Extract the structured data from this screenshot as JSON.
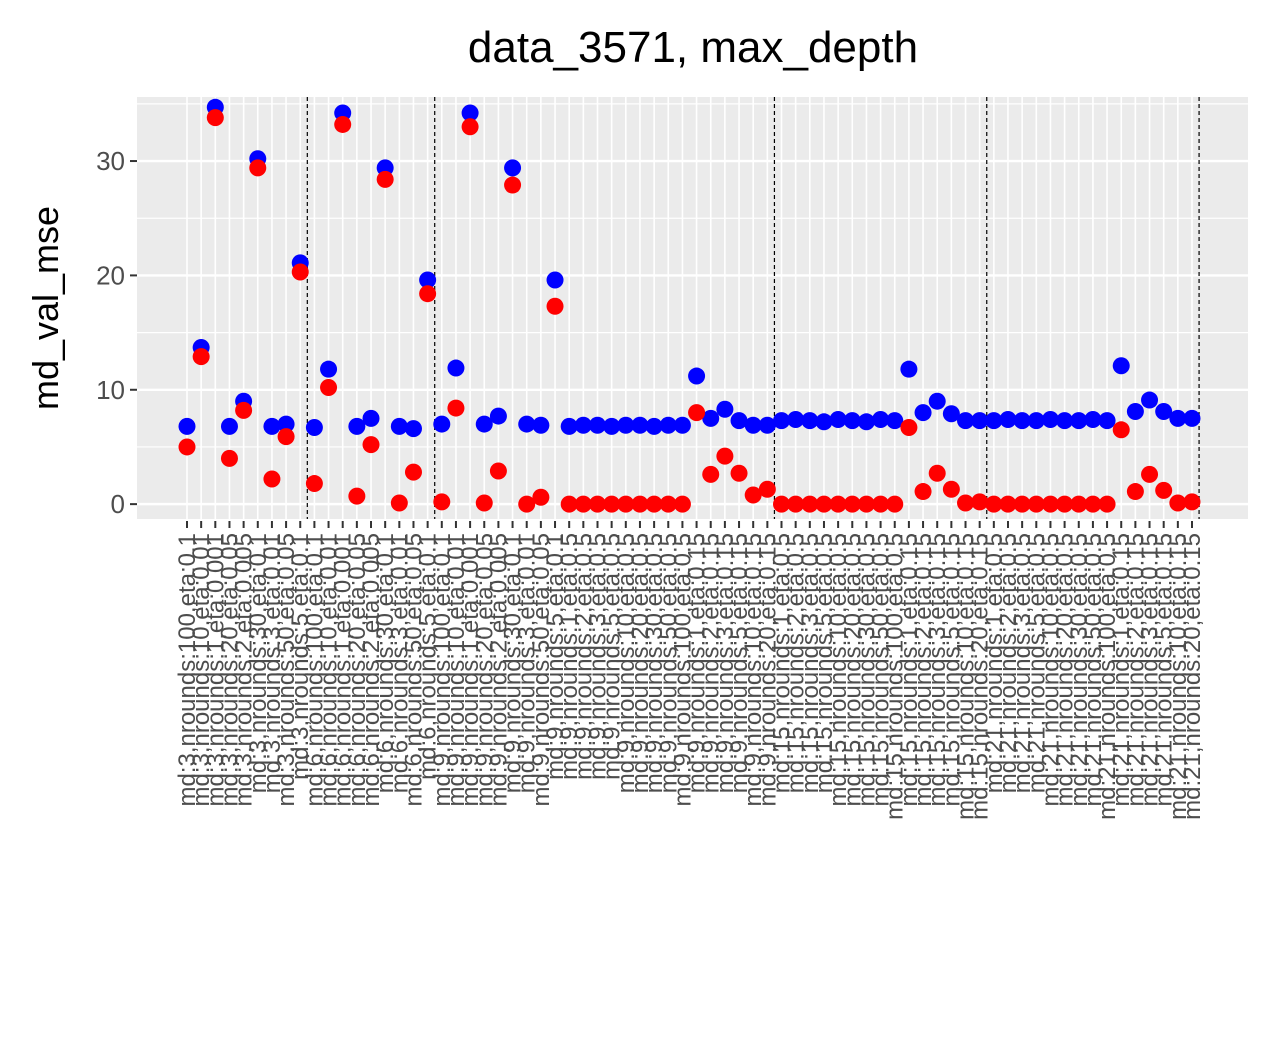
{
  "chart_data": {
    "type": "scatter",
    "title": "data_3571, max_depth",
    "xlabel": "",
    "ylabel": "md_val_mse",
    "ylim": [
      -1.3,
      35.6
    ],
    "yticks": [
      0,
      10,
      20,
      30
    ],
    "grid": true,
    "legend": "none",
    "colors": {
      "panel": "#ebebeb",
      "grid": "#ffffff",
      "series_a": "#0000ff",
      "series_b": "#ff0000",
      "vline": "#000000"
    },
    "categories": [
      "md:3,nrounds:100,eta:0.1",
      "md:3,nrounds:10,eta:0.01",
      "md:3,nrounds:1,eta:0.001",
      "md:3,nrounds:20,eta:0.05",
      "md:3,nrounds:2,eta:0.005",
      "md:3,nrounds:30,eta:0.1",
      "md:3,nrounds:3,eta:0.01",
      "md:3,nrounds:50,eta:0.05",
      "md:3,nrounds:5,eta:0.1",
      "md:6,nrounds:100,eta:0.1",
      "md:6,nrounds:10,eta:0.01",
      "md:6,nrounds:1,eta:0.001",
      "md:6,nrounds:20,eta:0.05",
      "md:6,nrounds:2,eta:0.005",
      "md:6,nrounds:30,eta:0.1",
      "md:6,nrounds:3,eta:0.01",
      "md:6,nrounds:50,eta:0.05",
      "md:6,nrounds:5,eta:0.1",
      "md:9,nrounds:100,eta:0.1",
      "md:9,nrounds:10,eta:0.01",
      "md:9,nrounds:1,eta:0.001",
      "md:9,nrounds:20,eta:0.05",
      "md:9,nrounds:2,eta:0.005",
      "md:9,nrounds:30,eta:0.1",
      "md:9,nrounds:3,eta:0.01",
      "md:9,nrounds:50,eta:0.05",
      "md:9,nrounds:5,eta:0.1",
      "md:9,nrounds:1,eta:0.5",
      "md:9,nrounds:2,eta:0.5",
      "md:9,nrounds:3,eta:0.5",
      "md:9,nrounds:5,eta:0.5",
      "md:9,nrounds:10,eta:0.5",
      "md:9,nrounds:20,eta:0.5",
      "md:9,nrounds:30,eta:0.5",
      "md:9,nrounds:50,eta:0.5",
      "md:9,nrounds:100,eta:0.5",
      "md:9,nrounds:1,eta:0.15",
      "md:9,nrounds:2,eta:0.15",
      "md:9,nrounds:3,eta:0.15",
      "md:9,nrounds:5,eta:0.15",
      "md:9,nrounds:10,eta:0.15",
      "md:9,nrounds:20,eta:0.15",
      "md:15,nrounds:1,eta:0.5",
      "md:15,nrounds:2,eta:0.5",
      "md:15,nrounds:3,eta:0.5",
      "md:15,nrounds:5,eta:0.5",
      "md:15,nrounds:10,eta:0.5",
      "md:15,nrounds:20,eta:0.5",
      "md:15,nrounds:30,eta:0.5",
      "md:15,nrounds:50,eta:0.5",
      "md:15,nrounds:100,eta:0.5",
      "md:15,nrounds:1,eta:0.15",
      "md:15,nrounds:2,eta:0.15",
      "md:15,nrounds:3,eta:0.15",
      "md:15,nrounds:5,eta:0.15",
      "md:15,nrounds:10,eta:0.15",
      "md:15,nrounds:20,eta:0.15",
      "md:21,nrounds:1,eta:0.5",
      "md:21,nrounds:2,eta:0.5",
      "md:21,nrounds:3,eta:0.5",
      "md:21,nrounds:5,eta:0.5",
      "md:21,nrounds:10,eta:0.5",
      "md:21,nrounds:20,eta:0.5",
      "md:21,nrounds:30,eta:0.5",
      "md:21,nrounds:50,eta:0.5",
      "md:21,nrounds:100,eta:0.5",
      "md:21,nrounds:1,eta:0.15",
      "md:21,nrounds:2,eta:0.15",
      "md:21,nrounds:3,eta:0.15",
      "md:21,nrounds:5,eta:0.15",
      "md:21,nrounds:10,eta:0.15",
      "md:21,nrounds:20,eta:0.15"
    ],
    "group_boundaries_after_index": [
      8,
      17,
      41,
      56,
      71
    ],
    "series": [
      {
        "color": "#0000ff",
        "values": [
          6.8,
          13.7,
          34.7,
          6.8,
          9.0,
          30.2,
          6.8,
          7.0,
          21.1,
          6.7,
          11.8,
          34.2,
          6.8,
          7.5,
          29.4,
          6.8,
          6.6,
          19.6,
          7.0,
          11.9,
          34.2,
          7.0,
          7.7,
          29.4,
          7.0,
          6.9,
          19.6,
          6.8,
          6.9,
          6.9,
          6.8,
          6.9,
          6.9,
          6.8,
          6.9,
          6.9,
          11.2,
          7.5,
          8.3,
          7.3,
          6.9,
          6.9,
          7.3,
          7.4,
          7.3,
          7.2,
          7.4,
          7.3,
          7.2,
          7.4,
          7.3,
          11.8,
          8.0,
          9.0,
          7.9,
          7.3,
          7.3,
          7.3,
          7.4,
          7.3,
          7.3,
          7.4,
          7.3,
          7.3,
          7.4,
          7.3,
          12.1,
          8.1,
          9.1,
          8.1,
          7.5,
          7.5
        ]
      },
      {
        "color": "#ff0000",
        "values": [
          5.0,
          12.9,
          33.8,
          4.0,
          8.2,
          29.4,
          2.2,
          5.9,
          20.3,
          1.8,
          10.2,
          33.2,
          0.7,
          5.2,
          28.4,
          0.1,
          2.8,
          18.4,
          0.2,
          8.4,
          33.0,
          0.1,
          2.9,
          27.9,
          0.0,
          0.6,
          17.3,
          0.0,
          0.0,
          0.0,
          0.0,
          0.0,
          0.0,
          0.0,
          0.0,
          0.0,
          8.0,
          2.6,
          4.2,
          2.7,
          0.8,
          1.3,
          0.0,
          0.0,
          0.0,
          0.0,
          0.0,
          0.0,
          0.0,
          0.0,
          0.0,
          6.7,
          1.1,
          2.7,
          1.3,
          0.1,
          0.2,
          0.0,
          0.0,
          0.0,
          0.0,
          0.0,
          0.0,
          0.0,
          0.0,
          0.0,
          6.5,
          1.1,
          2.6,
          1.2,
          0.1,
          0.2
        ]
      }
    ]
  }
}
